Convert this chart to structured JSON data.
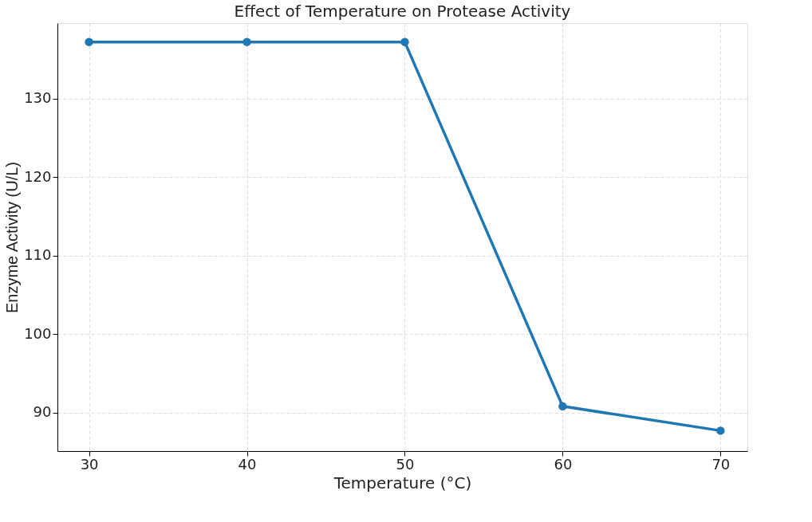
{
  "chart_data": {
    "type": "line",
    "title": "Effect of Temperature on Protease Activity",
    "xlabel": "Temperature (°C)",
    "ylabel": "Enzyme Activity (U/L)",
    "x": [
      30,
      40,
      50,
      60,
      70
    ],
    "series": [
      {
        "color": "#1f77b4",
        "values": [
          137.2,
          137.2,
          137.2,
          90.8,
          87.7
        ]
      }
    ],
    "xlim": [
      28,
      71.7
    ],
    "xticks": [
      30,
      40,
      50,
      60,
      70
    ],
    "ylim": [
      85.1,
      139.6
    ],
    "yticks": [
      90,
      100,
      110,
      120,
      130
    ],
    "grid": true,
    "marker": "circle",
    "line_style": "solid",
    "legend": false
  }
}
